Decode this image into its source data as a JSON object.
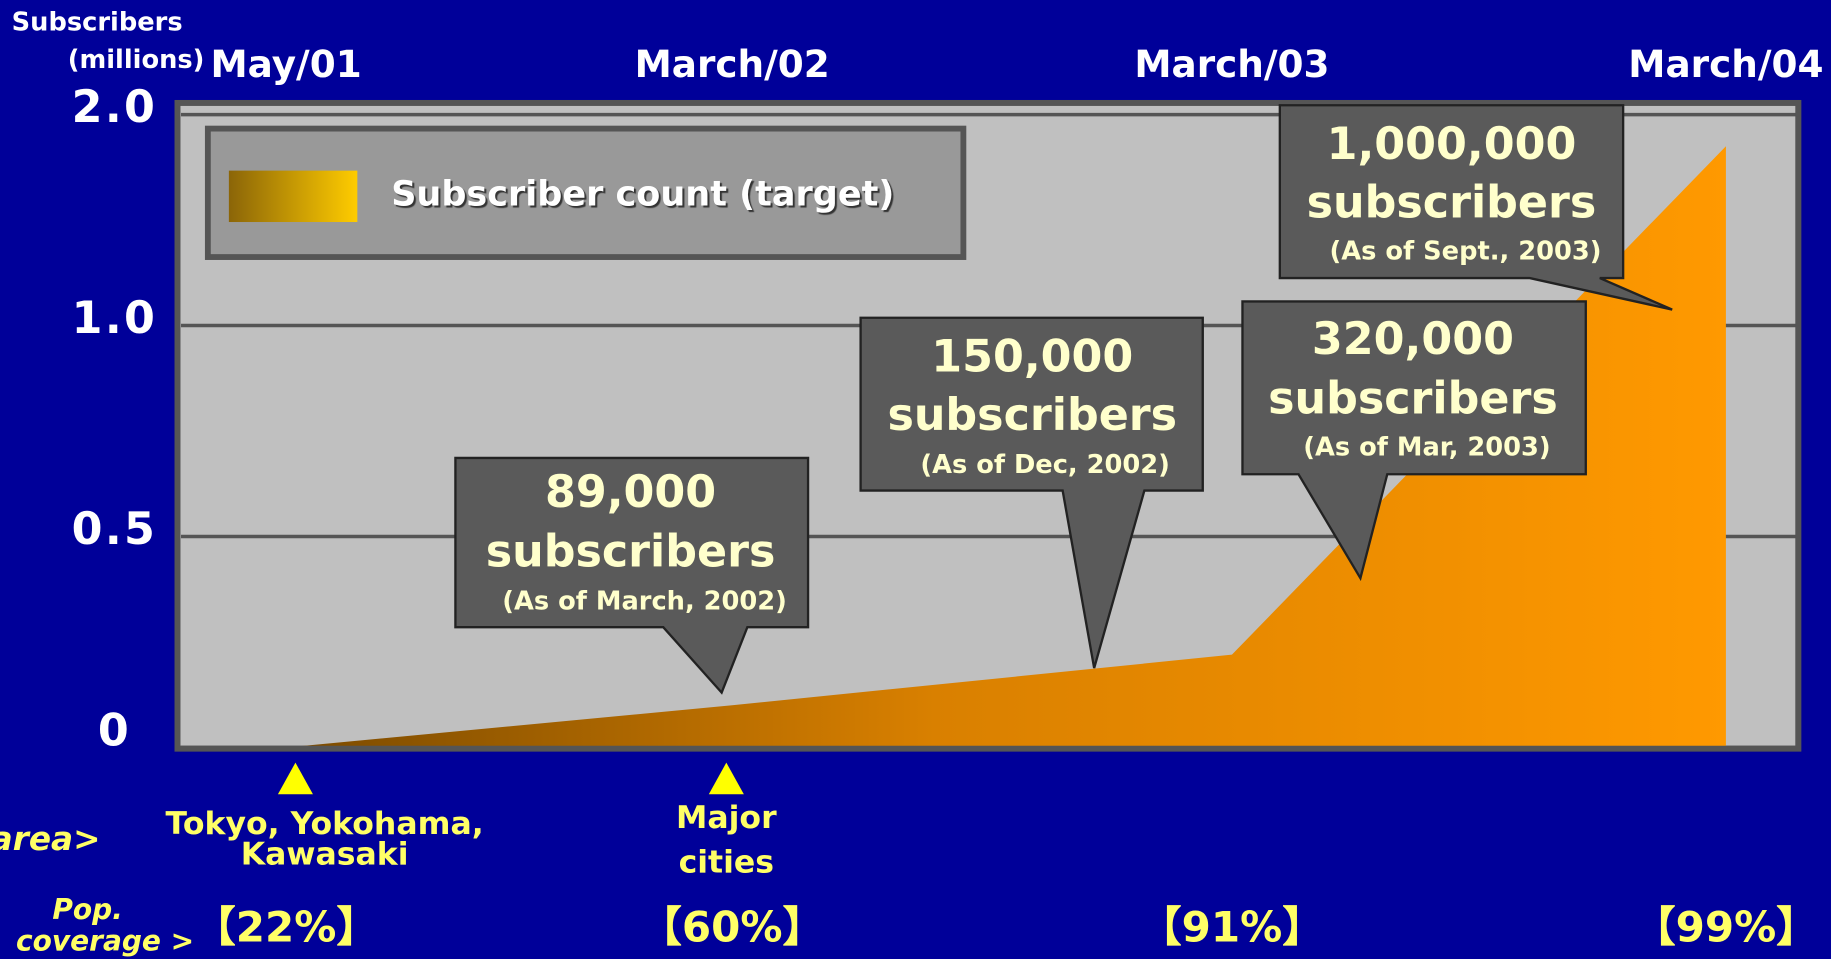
{
  "chart_data": {
    "type": "area",
    "y_axis_label": [
      "Subscribers",
      "(millions)"
    ],
    "categories": [
      "May/01",
      "March/02",
      "March/03",
      "March/04"
    ],
    "series": [
      {
        "name": "Subscriber count (target)",
        "color": "#ff9900",
        "values": [
          0,
          0.1,
          0.22,
          1.85
        ]
      }
    ],
    "ylim": [
      0,
      2
    ],
    "yticks": [
      0,
      0.5,
      {
        "value": 1,
        "label": "1.0"
      },
      {
        "value": 2,
        "label": "2.0"
      }
    ],
    "grid": true,
    "annotations": [
      {
        "count": "89,000",
        "unit": "subscribers",
        "note": "(As of March, 2002)"
      },
      {
        "count": "150,000",
        "unit": "subscribers",
        "note": "(As of Dec, 2002)"
      },
      {
        "count": "320,000",
        "unit": "subscribers",
        "note": "(As of Mar, 2003)"
      },
      {
        "count": "1,000,000",
        "unit": "subscribers",
        "note": "(As of Sept., 2003)"
      }
    ],
    "service_area_label": "area>",
    "service_areas": [
      [
        "Tokyo, Yokohama,",
        "Kawasaki"
      ],
      [
        "Major",
        "cities"
      ]
    ],
    "coverage_label": [
      "Pop.",
      "coverage >"
    ],
    "coverage": [
      "【22%】",
      "【60%】",
      "【91%】",
      "【99%】"
    ]
  }
}
